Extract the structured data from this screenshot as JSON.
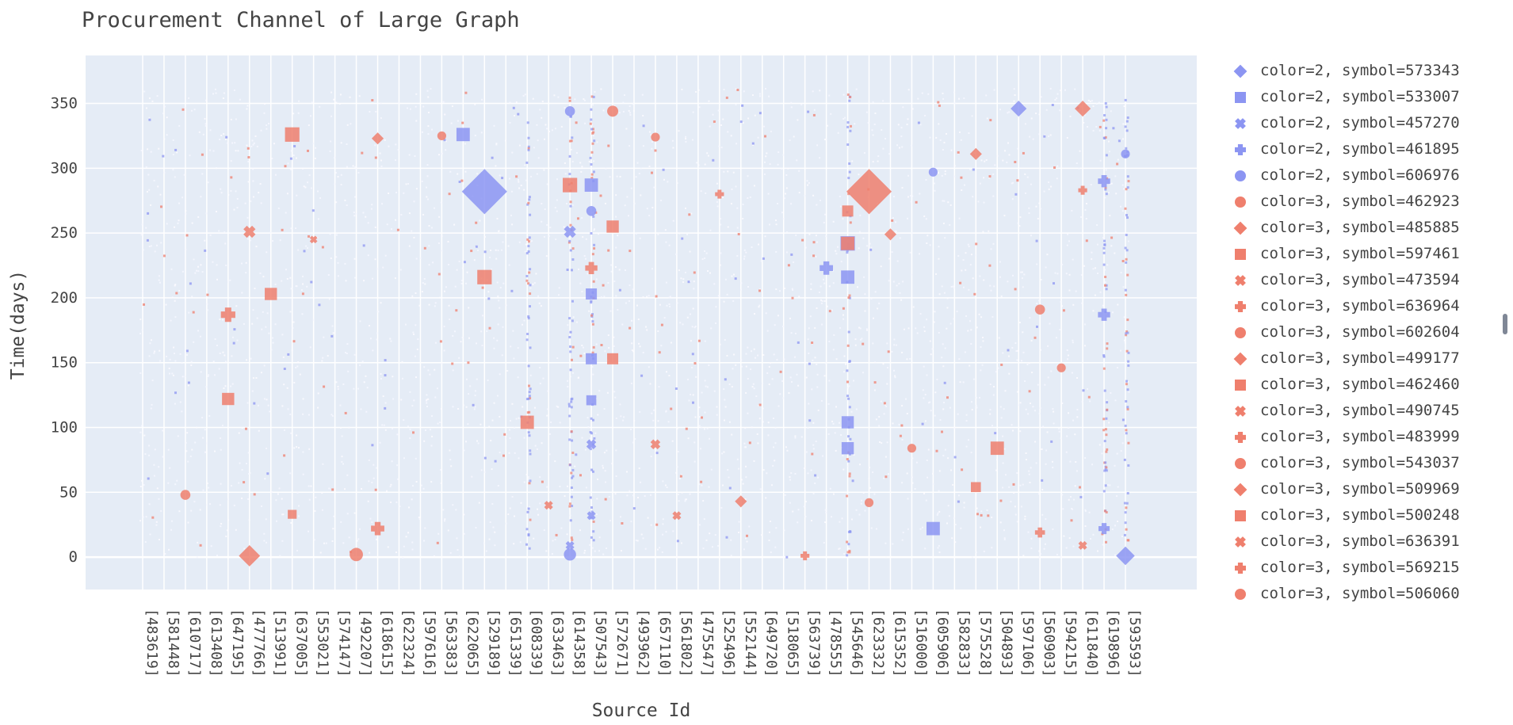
{
  "chart_data": {
    "type": "scatter",
    "title": "Procurement Channel of Large Graph",
    "xlabel": "Source Id",
    "ylabel": "Time(days)",
    "ylim": [
      -25,
      387
    ],
    "yticks": [
      0,
      50,
      100,
      150,
      200,
      250,
      300,
      350
    ],
    "grid": true,
    "legend_placement": "right",
    "colors": {
      "2": "#8c95f2",
      "3": "#ef7f6d",
      "plot_bg": "#e5ecf6",
      "grid": "#ffffff"
    },
    "categories": [
      "[483619]",
      "[581448]",
      "[610717]",
      "[613408]",
      "[647195]",
      "[477766]",
      "[513991]",
      "[637005]",
      "[553021]",
      "[574147]",
      "[492207]",
      "[618615]",
      "[622324]",
      "[597616]",
      "[563383]",
      "[622065]",
      "[529189]",
      "[651339]",
      "[608339]",
      "[633463]",
      "[614358]",
      "[507543]",
      "[572671]",
      "[493962]",
      "[657110]",
      "[561802]",
      "[475547]",
      "[525496]",
      "[552144]",
      "[649720]",
      "[518065]",
      "[563739]",
      "[478555]",
      "[545646]",
      "[623332]",
      "[615352]",
      "[516000]",
      "[605906]",
      "[582833]",
      "[575528]",
      "[504893]",
      "[597106]",
      "[560903]",
      "[594215]",
      "[611840]",
      "[619896]",
      "[593593]"
    ],
    "series": [
      {
        "name": "color=2, symbol=573343",
        "color": "2",
        "symbol": "diamond",
        "points": [
          {
            "x": "[529189]",
            "y": 282,
            "size": 34
          },
          {
            "x": "[597106]",
            "y": 346,
            "size": 12
          },
          {
            "x": "[593593]",
            "y": 1,
            "size": 14
          }
        ]
      },
      {
        "name": "color=2, symbol=533007",
        "color": "2",
        "symbol": "square",
        "points": [
          {
            "x": "[622065]",
            "y": 326,
            "size": 12
          },
          {
            "x": "[507543]",
            "y": 287,
            "size": 12
          },
          {
            "x": "[507543]",
            "y": 203,
            "size": 10
          },
          {
            "x": "[507543]",
            "y": 153,
            "size": 10
          },
          {
            "x": "[507543]",
            "y": 121,
            "size": 9
          },
          {
            "x": "[545646]",
            "y": 242,
            "size": 13
          },
          {
            "x": "[545646]",
            "y": 216,
            "size": 12
          },
          {
            "x": "[545646]",
            "y": 104,
            "size": 11
          },
          {
            "x": "[545646]",
            "y": 84,
            "size": 11
          },
          {
            "x": "[605906]",
            "y": 22,
            "size": 12
          }
        ]
      },
      {
        "name": "color=2, symbol=457270",
        "color": "2",
        "symbol": "x",
        "points": [
          {
            "x": "[614358]",
            "y": 251,
            "size": 11
          },
          {
            "x": "[507543]",
            "y": 87,
            "size": 9
          },
          {
            "x": "[507543]",
            "y": 32,
            "size": 8
          },
          {
            "x": "[614358]",
            "y": 9,
            "size": 8
          }
        ]
      },
      {
        "name": "color=2, symbol=461895",
        "color": "2",
        "symbol": "cross",
        "points": [
          {
            "x": "[478555]",
            "y": 223,
            "size": 12
          },
          {
            "x": "[619896]",
            "y": 290,
            "size": 11
          },
          {
            "x": "[619896]",
            "y": 187,
            "size": 11
          },
          {
            "x": "[619896]",
            "y": 22,
            "size": 10
          }
        ]
      },
      {
        "name": "color=2, symbol=606976",
        "color": "2",
        "symbol": "circle",
        "points": [
          {
            "x": "[614358]",
            "y": 2,
            "size": 11
          },
          {
            "x": "[614358]",
            "y": 344,
            "size": 9
          },
          {
            "x": "[507543]",
            "y": 267,
            "size": 9
          },
          {
            "x": "[605906]",
            "y": 297,
            "size": 8
          },
          {
            "x": "[593593]",
            "y": 311,
            "size": 8
          }
        ]
      },
      {
        "name": "color=3, symbol=462923",
        "color": "3",
        "symbol": "circle",
        "points": [
          {
            "x": "[492207]",
            "y": 2,
            "size": 12
          },
          {
            "x": "[572671]",
            "y": 344,
            "size": 10
          },
          {
            "x": "[560903]",
            "y": 191,
            "size": 9
          },
          {
            "x": "[610717]",
            "y": 48,
            "size": 9
          }
        ]
      },
      {
        "name": "color=3, symbol=485885",
        "color": "3",
        "symbol": "diamond",
        "points": [
          {
            "x": "[477766]",
            "y": 1,
            "size": 16
          },
          {
            "x": "[623332]",
            "y": 282,
            "size": 34
          },
          {
            "x": "[611840]",
            "y": 346,
            "size": 12
          }
        ]
      },
      {
        "name": "color=3, symbol=597461",
        "color": "3",
        "symbol": "square",
        "points": [
          {
            "x": "[637005]",
            "y": 326,
            "size": 13
          },
          {
            "x": "[614358]",
            "y": 287,
            "size": 13
          },
          {
            "x": "[572671]",
            "y": 255,
            "size": 11
          },
          {
            "x": "[529189]",
            "y": 216,
            "size": 13
          },
          {
            "x": "[608339]",
            "y": 104,
            "size": 12
          },
          {
            "x": "[504893]",
            "y": 84,
            "size": 12
          },
          {
            "x": "[513991]",
            "y": 203,
            "size": 11
          }
        ]
      },
      {
        "name": "color=3, symbol=473594",
        "color": "3",
        "symbol": "x",
        "points": [
          {
            "x": "[477766]",
            "y": 251,
            "size": 11
          },
          {
            "x": "[657110]",
            "y": 87,
            "size": 9
          }
        ]
      },
      {
        "name": "color=3, symbol=636964",
        "color": "3",
        "symbol": "cross",
        "points": [
          {
            "x": "[647195]",
            "y": 187,
            "size": 13
          },
          {
            "x": "[618615]",
            "y": 22,
            "size": 12
          },
          {
            "x": "[507543]",
            "y": 223,
            "size": 11
          }
        ]
      },
      {
        "name": "color=3, symbol=602604",
        "color": "3",
        "symbol": "circle",
        "points": [
          {
            "x": "[623332]",
            "y": 42,
            "size": 8
          },
          {
            "x": "[563383]",
            "y": 325,
            "size": 8
          }
        ]
      },
      {
        "name": "color=3, symbol=499177",
        "color": "3",
        "symbol": "diamond",
        "points": [
          {
            "x": "[615352]",
            "y": 249,
            "size": 9
          },
          {
            "x": "[552144]",
            "y": 43,
            "size": 9
          }
        ]
      },
      {
        "name": "color=3, symbol=462460",
        "color": "3",
        "symbol": "square",
        "points": [
          {
            "x": "[545646]",
            "y": 242,
            "size": 12
          },
          {
            "x": "[647195]",
            "y": 122,
            "size": 11
          },
          {
            "x": "[572671]",
            "y": 153,
            "size": 10
          },
          {
            "x": "[575528]",
            "y": 54,
            "size": 9
          }
        ]
      },
      {
        "name": "color=3, symbol=490745",
        "color": "3",
        "symbol": "x",
        "points": [
          {
            "x": "[633463]",
            "y": 40,
            "size": 8
          },
          {
            "x": "[561802]",
            "y": 32,
            "size": 8
          }
        ]
      },
      {
        "name": "color=3, symbol=483999",
        "color": "3",
        "symbol": "cross",
        "points": [
          {
            "x": "[560903]",
            "y": 19,
            "size": 9
          },
          {
            "x": "[563739]",
            "y": 1,
            "size": 8
          }
        ]
      },
      {
        "name": "color=3, symbol=543037",
        "color": "3",
        "symbol": "circle",
        "points": [
          {
            "x": "[516000]",
            "y": 84,
            "size": 8
          },
          {
            "x": "[594215]",
            "y": 146,
            "size": 8
          }
        ]
      },
      {
        "name": "color=3, symbol=509969",
        "color": "3",
        "symbol": "diamond",
        "points": [
          {
            "x": "[618615]",
            "y": 323,
            "size": 9
          },
          {
            "x": "[575528]",
            "y": 311,
            "size": 9
          }
        ]
      },
      {
        "name": "color=3, symbol=500248",
        "color": "3",
        "symbol": "square",
        "points": [
          {
            "x": "[545646]",
            "y": 267,
            "size": 10
          },
          {
            "x": "[637005]",
            "y": 33,
            "size": 8
          }
        ]
      },
      {
        "name": "color=3, symbol=636391",
        "color": "3",
        "symbol": "x",
        "points": [
          {
            "x": "[611840]",
            "y": 9,
            "size": 8
          },
          {
            "x": "[553021]",
            "y": 245,
            "size": 7
          }
        ]
      },
      {
        "name": "color=3, symbol=569215",
        "color": "3",
        "symbol": "cross",
        "points": [
          {
            "x": "[611840]",
            "y": 283,
            "size": 8
          },
          {
            "x": "[525496]",
            "y": 280,
            "size": 8
          }
        ]
      },
      {
        "name": "color=3, symbol=506060",
        "color": "3",
        "symbol": "circle",
        "points": [
          {
            "x": "[657110]",
            "y": 324,
            "size": 8
          }
        ]
      }
    ]
  },
  "ui": {
    "legend_scroll": {
      "position": 0.5
    }
  }
}
